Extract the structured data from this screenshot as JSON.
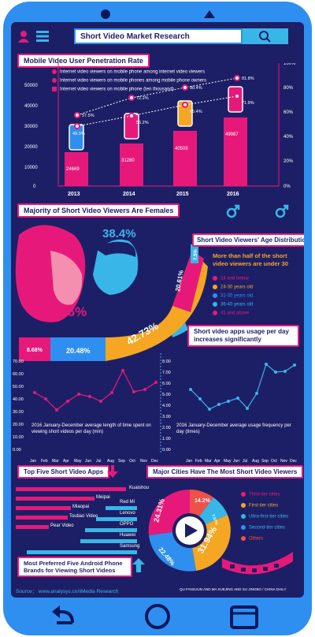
{
  "header": {
    "title": "Short Video Market Research",
    "search_icon": "search-icon",
    "user_icon": "user-icon",
    "menu_icon": "menu-icon"
  },
  "colors": {
    "background": "#1d1f66",
    "phone": "#2f8ff0",
    "pink": "#e6197a",
    "cyan": "#38b6e8",
    "orange": "#f5a623",
    "red": "#f0504a"
  },
  "penetration": {
    "title": "Mobile Video User Penetration Rate",
    "legend": [
      "Internet video viewers on mobile phone among internet video viewers",
      "Internet video viewers on mobile phones among mobile phone owners",
      "Internet video viewers on mobile phone (ten thousand)"
    ]
  },
  "gender": {
    "title": "Majority of Short Video Viewers Are Females",
    "male_pct": "38.4%",
    "female_pct": "61.6%"
  },
  "age": {
    "title": "Short Video Viewers' Age Distribution",
    "note": "More than half of the short video viewers are under 30",
    "legend": [
      "24 and below",
      "24-30 years old",
      "31-35 years old",
      "36-40 years old",
      "41 and above"
    ]
  },
  "usage": {
    "title": "Short video apps usage per day increases significantly",
    "left_caption": "2016 January-December average length of time spent on viewing short videos per day (min)",
    "right_caption": "2016 January-December average usage frequency per day (times)",
    "months": [
      "Jan",
      "Feb",
      "Mar",
      "Apr",
      "May",
      "Jun",
      "Jul",
      "Aug",
      "Sep",
      "Oct",
      "Nov",
      "Dec"
    ]
  },
  "apps": {
    "title": "Top Five Short Video Apps",
    "brands_title": "Most Preferred Five Android Phone Brands for Viewing Short Videos",
    "apps_list": [
      "Kuaishou",
      "Meipai",
      "Miaopai",
      "Toutiao Video",
      "Pear Video"
    ],
    "brands_list": [
      "Red Mi",
      "Lenovo",
      "OPPO",
      "Huawei",
      "Samsung"
    ]
  },
  "cities": {
    "title": "Major Cities Have The Most Short Video Viewers",
    "legend": [
      "Third-tier cities",
      "First-tier cities",
      "Ultra-first-tier cities",
      "Second-tier cities",
      "Others"
    ]
  },
  "footer": {
    "source": "Source： www.analysys.cn/iiMedia Research",
    "credit": "QU FANGJUN AND MA XUEJING AND SU JINGBO / CHINA DAILY"
  },
  "chart_data": [
    {
      "type": "bar",
      "title": "Mobile Video User Penetration Rate",
      "categories": [
        "2013",
        "2014",
        "2015",
        "2016"
      ],
      "series": [
        {
          "name": "Internet video viewers on mobile phone (ten thousand)",
          "values": [
            24669,
            31280,
            40508,
            49987
          ]
        }
      ],
      "ylim": [
        0,
        60000
      ],
      "y_ticks": [
        "0",
        "10000",
        "20000",
        "30000",
        "40000",
        "50000",
        "60000"
      ],
      "y2_ticks": [
        "0%",
        "20%",
        "40%",
        "60%",
        "80%",
        "100%"
      ],
      "lines": [
        {
          "name": "Internet video viewers on mobile phone among internet video viewers",
          "values_pct": [
            "57.5%",
            "72.2%",
            "80.4%",
            "81.8%"
          ]
        },
        {
          "name": "Internet video viewers on mobile phones among mobile phone owners",
          "values_pct": [
            "49.3%",
            "56.2%",
            "65.4%",
            "71.9%"
          ]
        }
      ]
    },
    {
      "type": "pie",
      "title": "Majority of Short Video Viewers Are Females",
      "labels": [
        "Male",
        "Female"
      ],
      "values_pct": [
        "38.4%",
        "61.6%"
      ]
    },
    {
      "type": "pie",
      "title": "Short Video Viewers' Age Distribution",
      "labels": [
        "24 and below",
        "24-30 years old",
        "31-35 years old",
        "36-40 years old",
        "41 and above"
      ],
      "values_pct": [
        "20.61%",
        "42.73%",
        "20.48%",
        "8.68%",
        "7.5%"
      ]
    },
    {
      "type": "line",
      "x": [
        "Jan",
        "Feb",
        "Mar",
        "Apr",
        "May",
        "Jun",
        "Jul",
        "Aug",
        "Sep",
        "Oct",
        "Nov",
        "Dec"
      ],
      "values": [
        45,
        36,
        27,
        34,
        43,
        41,
        36,
        44,
        65,
        46,
        47,
        54
      ],
      "ylim": [
        0,
        70
      ],
      "y_ticks": [
        "0.00",
        "10.00",
        "20.00",
        "30.00",
        "40.00",
        "50.00",
        "60.00",
        "70.00"
      ],
      "xlabel": "2016 January-December average length of time spent on viewing short videos per day (min)"
    },
    {
      "type": "line",
      "x": [
        "Jan",
        "Feb",
        "Mar",
        "Apr",
        "May",
        "Jun",
        "Jul",
        "Aug",
        "Sep",
        "Oct",
        "Nov",
        "Dec"
      ],
      "values": [
        5.6,
        4.7,
        3.8,
        4.2,
        4.5,
        4.8,
        3.9,
        5.2,
        7.9,
        7.2,
        7.3,
        7.8
      ],
      "ylim": [
        0,
        8
      ],
      "y_ticks": [
        "0.00",
        "1.00",
        "2.00",
        "3.00",
        "4.00",
        "5.00",
        "6.00",
        "7.00",
        "8.00"
      ],
      "xlabel": "2016 January-December average usage frequency per day (times)"
    },
    {
      "type": "bar",
      "title": "Top Five Short Video Apps",
      "categories": [
        "Kuaishou",
        "Meipai",
        "Miaopai",
        "Toutiao Video",
        "Pear Video"
      ],
      "values": [
        100,
        72,
        50,
        48,
        30
      ]
    },
    {
      "type": "bar",
      "title": "Most Preferred Five Android Phone Brands for Viewing Short Videos",
      "categories": [
        "Red Mi",
        "Lenovo",
        "OPPO",
        "Huawei",
        "Samsung"
      ],
      "values": [
        30,
        40,
        48,
        50,
        100
      ]
    },
    {
      "type": "pie",
      "title": "Major Cities Have The Most Short Video Viewers",
      "labels": [
        "Third-tier cities",
        "First-tier cities",
        "Ultra-first-tier cities",
        "Second-tier cities",
        "Others"
      ],
      "values_pct": [
        "24.31%",
        "14.2%",
        "7.07%",
        "31.94%",
        "22.48%"
      ]
    }
  ]
}
